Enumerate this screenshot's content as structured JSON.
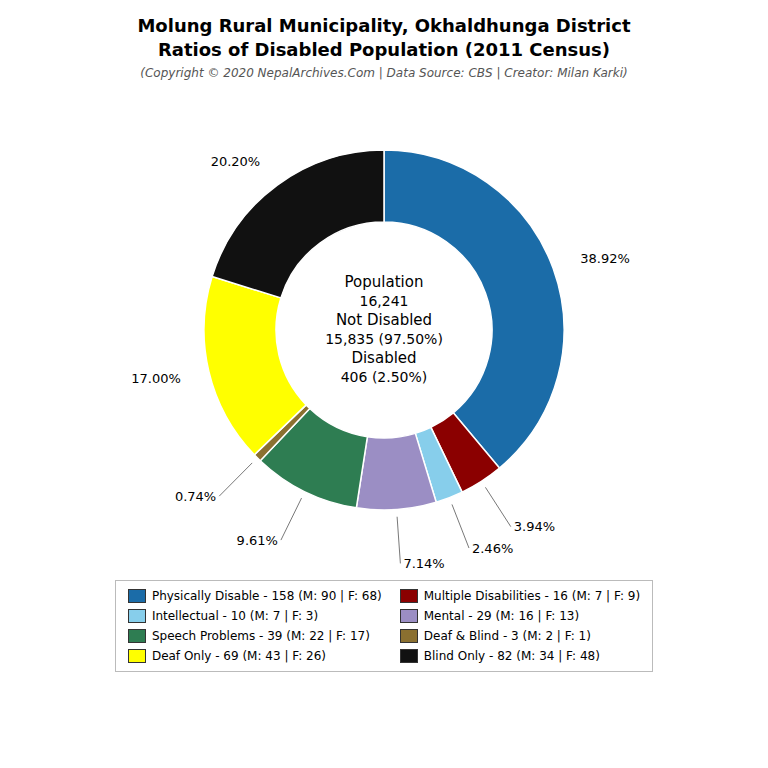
{
  "chart_data": {
    "type": "pie",
    "title": "Molung Rural Municipality, Okhaldhunga District\nRatios of Disabled Population (2011 Census)",
    "subtitle": "(Copyright © 2020 NepalArchives.Com | Data Source: CBS | Creator: Milan Karki)",
    "categories": [
      "Physically Disable - 158 (M: 90 | F: 68)",
      "Multiple Disabilities - 16 (M: 7 | F: 9)",
      "Intellectual - 10 (M: 7 | F: 3)",
      "Mental - 29 (M: 16 | F: 13)",
      "Speech Problems - 39 (M: 22 | F: 17)",
      "Deaf & Blind - 3 (M: 2 | F: 1)",
      "Deaf Only - 69 (M: 43 | F: 26)",
      "Blind Only - 82 (M: 34 | F: 48)"
    ],
    "values": [
      38.92,
      3.94,
      2.46,
      7.14,
      9.61,
      0.74,
      17.0,
      20.2
    ],
    "value_labels": [
      "38.92%",
      "3.94%",
      "2.46%",
      "7.14%",
      "9.61%",
      "0.74%",
      "17.00%",
      "20.20%"
    ],
    "colors": [
      "#1b6ca8",
      "#8b0000",
      "#87ceeb",
      "#9b8ec4",
      "#2e7d52",
      "#8b7030",
      "#ffff00",
      "#111111"
    ],
    "data_labels": true,
    "legend": "bottom",
    "annotations": [
      "Population",
      "16,241",
      "Not Disabled",
      "15,835 (97.50%)",
      "Disabled",
      "406 (2.50%)"
    ]
  }
}
